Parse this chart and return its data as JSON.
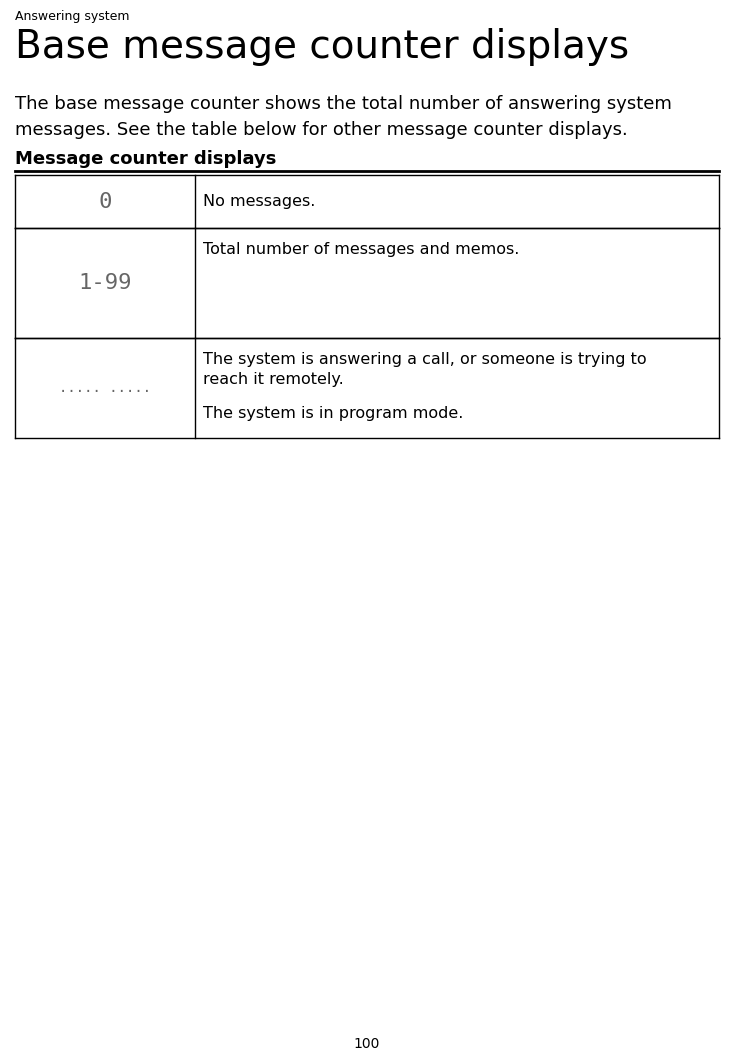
{
  "page_number": "100",
  "section_label": "Answering system",
  "title": "Base message counter displays",
  "body_text": "The base message counter shows the total number of answering system\nmessages. See the table below for other message counter displays.",
  "table_heading": "Message counter displays",
  "table_rows": [
    {
      "col1": "0",
      "col2_lines": [
        "No messages."
      ],
      "col1_size": 16
    },
    {
      "col1": "1-99",
      "col2_lines": [
        "Total number of messages and memos."
      ],
      "col1_size": 16
    },
    {
      "col1": "..... .....",
      "col2_lines": [
        "The system is answering a call, or someone is trying to",
        "reach it remotely.",
        "",
        "The system is in program mode."
      ],
      "col1_size": 10
    }
  ],
  "bg_color": "#ffffff",
  "text_color": "#000000",
  "section_label_size": 9,
  "title_size": 28,
  "body_size": 13,
  "table_heading_size": 13,
  "page_num_size": 10
}
